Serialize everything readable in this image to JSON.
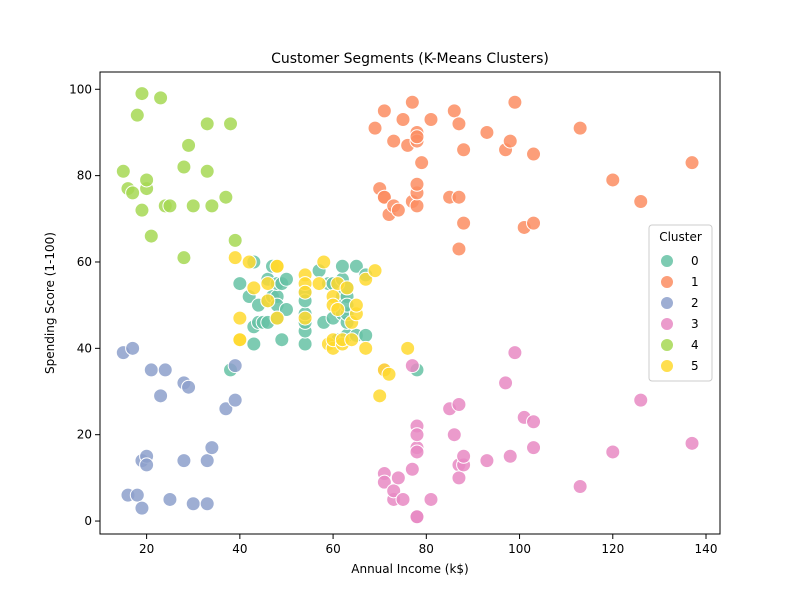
{
  "chart_data": {
    "type": "scatter",
    "title": "Customer Segments (K-Means Clusters)",
    "xlabel": "Annual Income (k$)",
    "ylabel": "Spending Score (1-100)",
    "xlim": [
      10,
      143
    ],
    "ylim": [
      -3,
      104
    ],
    "xticks": [
      20,
      40,
      60,
      80,
      100,
      120,
      140
    ],
    "yticks": [
      0,
      20,
      40,
      60,
      80,
      100
    ],
    "grid": false,
    "legend": {
      "title": "Cluster",
      "placement": "center-right"
    },
    "series": [
      {
        "name": "0",
        "color": "#66c2a5",
        "points": [
          [
            40,
            55
          ],
          [
            42,
            52
          ],
          [
            43,
            41
          ],
          [
            43,
            45
          ],
          [
            43,
            60
          ],
          [
            44,
            50
          ],
          [
            44,
            46
          ],
          [
            45,
            46
          ],
          [
            46,
            51
          ],
          [
            46,
            56
          ],
          [
            46,
            46
          ],
          [
            47,
            59
          ],
          [
            47,
            52
          ],
          [
            48,
            52
          ],
          [
            48,
            50
          ],
          [
            48,
            47
          ],
          [
            48,
            55
          ],
          [
            49,
            42
          ],
          [
            49,
            55
          ],
          [
            50,
            49
          ],
          [
            50,
            56
          ],
          [
            54,
            41
          ],
          [
            54,
            44
          ],
          [
            54,
            46
          ],
          [
            54,
            48
          ],
          [
            54,
            53
          ],
          [
            54,
            51
          ],
          [
            57,
            58
          ],
          [
            58,
            46
          ],
          [
            59,
            55
          ],
          [
            60,
            47
          ],
          [
            60,
            55
          ],
          [
            61,
            42
          ],
          [
            62,
            48
          ],
          [
            62,
            52
          ],
          [
            62,
            56
          ],
          [
            62,
            59
          ],
          [
            63,
            43
          ],
          [
            63,
            46
          ],
          [
            63,
            48
          ],
          [
            63,
            52
          ],
          [
            63,
            50
          ],
          [
            63,
            54
          ],
          [
            65,
            43
          ],
          [
            65,
            59
          ],
          [
            67,
            43
          ],
          [
            67,
            57
          ],
          [
            78,
            35
          ],
          [
            38,
            35
          ]
        ]
      },
      {
        "name": "1",
        "color": "#fc8d62",
        "points": [
          [
            69,
            91
          ],
          [
            70,
            77
          ],
          [
            71,
            95
          ],
          [
            71,
            75
          ],
          [
            71,
            75
          ],
          [
            72,
            71
          ],
          [
            73,
            88
          ],
          [
            73,
            73
          ],
          [
            74,
            72
          ],
          [
            75,
            93
          ],
          [
            76,
            87
          ],
          [
            77,
            97
          ],
          [
            77,
            74
          ],
          [
            78,
            90
          ],
          [
            78,
            88
          ],
          [
            78,
            89
          ],
          [
            78,
            73
          ],
          [
            78,
            76
          ],
          [
            78,
            78
          ],
          [
            79,
            83
          ],
          [
            81,
            93
          ],
          [
            85,
            75
          ],
          [
            86,
            95
          ],
          [
            87,
            63
          ],
          [
            87,
            75
          ],
          [
            87,
            92
          ],
          [
            88,
            86
          ],
          [
            88,
            69
          ],
          [
            93,
            90
          ],
          [
            97,
            86
          ],
          [
            98,
            88
          ],
          [
            99,
            97
          ],
          [
            101,
            68
          ],
          [
            103,
            85
          ],
          [
            103,
            69
          ],
          [
            113,
            91
          ],
          [
            120,
            79
          ],
          [
            126,
            74
          ],
          [
            137,
            83
          ]
        ]
      },
      {
        "name": "2",
        "color": "#8da0cb",
        "points": [
          [
            15,
            39
          ],
          [
            16,
            6
          ],
          [
            17,
            40
          ],
          [
            18,
            6
          ],
          [
            19,
            14
          ],
          [
            19,
            3
          ],
          [
            20,
            15
          ],
          [
            20,
            13
          ],
          [
            21,
            35
          ],
          [
            23,
            29
          ],
          [
            24,
            35
          ],
          [
            25,
            5
          ],
          [
            28,
            32
          ],
          [
            28,
            14
          ],
          [
            29,
            31
          ],
          [
            30,
            4
          ],
          [
            33,
            4
          ],
          [
            33,
            14
          ],
          [
            34,
            17
          ],
          [
            37,
            26
          ],
          [
            39,
            36
          ],
          [
            39,
            28
          ]
        ]
      },
      {
        "name": "3",
        "color": "#e78ac3",
        "points": [
          [
            71,
            35
          ],
          [
            71,
            11
          ],
          [
            71,
            9
          ],
          [
            73,
            5
          ],
          [
            73,
            7
          ],
          [
            74,
            10
          ],
          [
            75,
            5
          ],
          [
            77,
            12
          ],
          [
            77,
            36
          ],
          [
            78,
            22
          ],
          [
            78,
            17
          ],
          [
            78,
            20
          ],
          [
            78,
            16
          ],
          [
            78,
            1
          ],
          [
            78,
            1
          ],
          [
            81,
            5
          ],
          [
            85,
            26
          ],
          [
            86,
            20
          ],
          [
            87,
            27
          ],
          [
            87,
            13
          ],
          [
            87,
            10
          ],
          [
            88,
            13
          ],
          [
            88,
            15
          ],
          [
            93,
            14
          ],
          [
            97,
            32
          ],
          [
            98,
            15
          ],
          [
            99,
            39
          ],
          [
            101,
            24
          ],
          [
            103,
            17
          ],
          [
            103,
            23
          ],
          [
            113,
            8
          ],
          [
            120,
            16
          ],
          [
            126,
            28
          ],
          [
            137,
            18
          ]
        ]
      },
      {
        "name": "4",
        "color": "#a6d854",
        "points": [
          [
            15,
            81
          ],
          [
            16,
            77
          ],
          [
            17,
            76
          ],
          [
            18,
            94
          ],
          [
            19,
            72
          ],
          [
            19,
            99
          ],
          [
            20,
            77
          ],
          [
            20,
            79
          ],
          [
            21,
            66
          ],
          [
            23,
            98
          ],
          [
            24,
            73
          ],
          [
            25,
            73
          ],
          [
            28,
            82
          ],
          [
            28,
            61
          ],
          [
            29,
            87
          ],
          [
            30,
            73
          ],
          [
            33,
            81
          ],
          [
            33,
            92
          ],
          [
            34,
            73
          ],
          [
            37,
            75
          ],
          [
            38,
            92
          ],
          [
            39,
            65
          ]
        ]
      },
      {
        "name": "5",
        "color": "#ffd92f",
        "points": [
          [
            39,
            61
          ],
          [
            40,
            42
          ],
          [
            40,
            42
          ],
          [
            40,
            47
          ],
          [
            42,
            60
          ],
          [
            43,
            54
          ],
          [
            46,
            51
          ],
          [
            46,
            55
          ],
          [
            48,
            59
          ],
          [
            48,
            59
          ],
          [
            48,
            47
          ],
          [
            54,
            57
          ],
          [
            54,
            55
          ],
          [
            54,
            53
          ],
          [
            54,
            47
          ],
          [
            57,
            55
          ],
          [
            58,
            60
          ],
          [
            59,
            41
          ],
          [
            60,
            40
          ],
          [
            60,
            42
          ],
          [
            60,
            52
          ],
          [
            60,
            50
          ],
          [
            61,
            49
          ],
          [
            61,
            55
          ],
          [
            62,
            41
          ],
          [
            62,
            42
          ],
          [
            63,
            54
          ],
          [
            64,
            46
          ],
          [
            64,
            42
          ],
          [
            65,
            48
          ],
          [
            65,
            50
          ],
          [
            67,
            56
          ],
          [
            67,
            40
          ],
          [
            69,
            58
          ],
          [
            70,
            29
          ],
          [
            71,
            35
          ],
          [
            72,
            34
          ],
          [
            76,
            40
          ]
        ]
      }
    ]
  }
}
